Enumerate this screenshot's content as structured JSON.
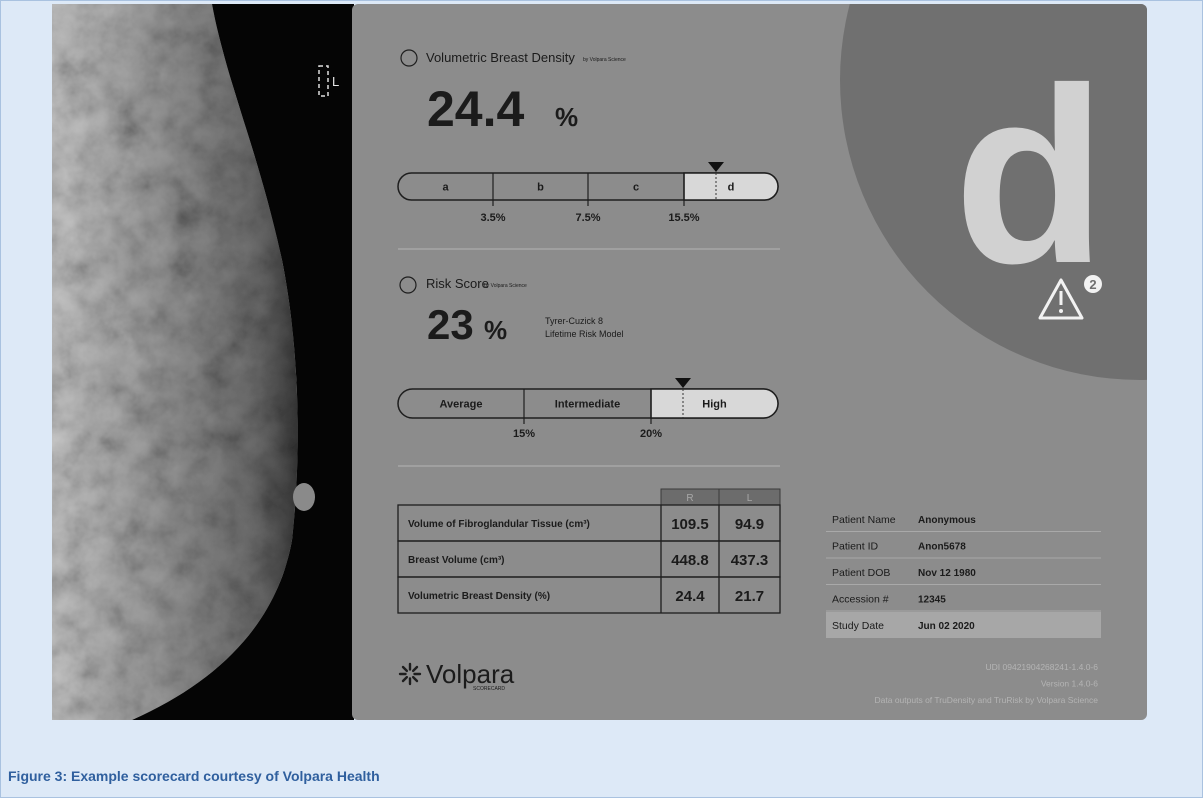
{
  "image": {
    "side_marker": "L"
  },
  "density": {
    "title": "Volumetric Breast Density",
    "by": "by Volpara Science",
    "value": "24.4",
    "unit": "%",
    "grades": [
      "a",
      "b",
      "c",
      "d"
    ],
    "thresholds": [
      "3.5%",
      "7.5%",
      "15.5%"
    ]
  },
  "grade": "d",
  "alert_count": "2",
  "risk": {
    "title": "Risk Score",
    "by": "by Volpara Science",
    "value": "23",
    "unit": "%",
    "model": [
      "Tyrer-Cuzick 8",
      "Lifetime Risk Model"
    ],
    "categories": [
      "Average",
      "Intermediate",
      "High"
    ],
    "thresholds": [
      "15%",
      "20%"
    ]
  },
  "measurements": {
    "columns": [
      "R",
      "L"
    ],
    "rows": [
      {
        "label": "Volume of Fibroglandular Tissue (cm³)",
        "values": [
          "109.5",
          "94.9"
        ]
      },
      {
        "label": "Breast Volume (cm³)",
        "values": [
          "448.8",
          "437.3"
        ]
      },
      {
        "label": "Volumetric Breast Density (%)",
        "values": [
          "24.4",
          "21.7"
        ]
      }
    ]
  },
  "patient": [
    {
      "label": "Patient Name",
      "value": "Anonymous"
    },
    {
      "label": "Patient ID",
      "value": "Anon5678"
    },
    {
      "label": "Patient DOB",
      "value": "Nov 12 1980"
    },
    {
      "label": "Accession #",
      "value": "12345"
    },
    {
      "label": "Study Date",
      "value": "Jun 02 2020"
    }
  ],
  "footer": [
    "UDI 09421904268241-1.4.0-6",
    "Version 1.4.0-6",
    "Data outputs of TruDensity and TruRisk by Volpara Science"
  ],
  "logo": {
    "name": "Volpara",
    "tag": "SCORECARD"
  },
  "caption": "Figure 3: Example scorecard courtesy of Volpara Health"
}
